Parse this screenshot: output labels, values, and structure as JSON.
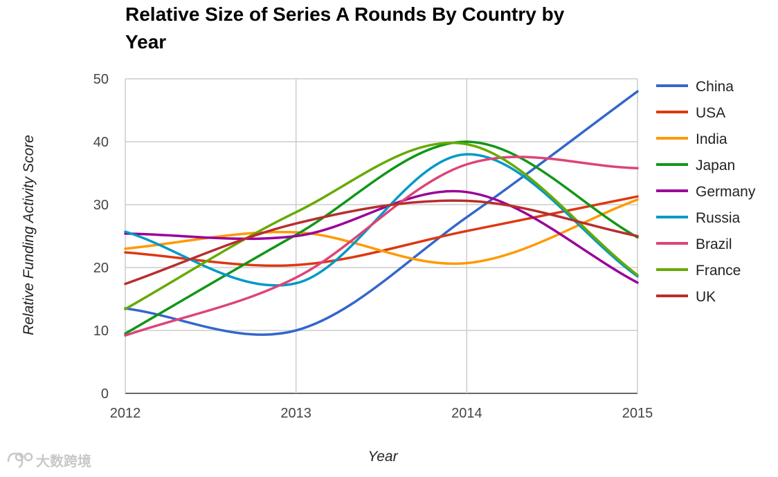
{
  "chart_data": {
    "type": "line",
    "title_lines": [
      "Relative Size of Series A Rounds By Country by",
      "Year"
    ],
    "xlabel": "Year",
    "ylabel": "Relative Funding Activity Score",
    "categories": [
      "2012",
      "2013",
      "2014",
      "2015"
    ],
    "ylim": [
      0,
      50
    ],
    "yticks": [
      "0",
      "10",
      "20",
      "30",
      "40",
      "50"
    ],
    "grid": true,
    "legend_position": "right",
    "curve": "smooth",
    "series": [
      {
        "name": "China",
        "color": "#3366cc",
        "values": [
          13.5,
          10.0,
          28.0,
          48.0
        ]
      },
      {
        "name": "USA",
        "color": "#dc3912",
        "values": [
          22.4,
          20.4,
          25.8,
          31.3
        ]
      },
      {
        "name": "India",
        "color": "#ff9900",
        "values": [
          23.0,
          25.6,
          20.7,
          30.8
        ]
      },
      {
        "name": "Japan",
        "color": "#109618",
        "values": [
          9.5,
          25.2,
          40.0,
          24.8
        ]
      },
      {
        "name": "Germany",
        "color": "#990099",
        "values": [
          25.4,
          25.0,
          32.0,
          17.6
        ]
      },
      {
        "name": "Russia",
        "color": "#0099c6",
        "values": [
          25.7,
          17.5,
          38.0,
          18.6
        ]
      },
      {
        "name": "Brazil",
        "color": "#dd4477",
        "values": [
          9.2,
          18.4,
          36.4,
          35.8
        ]
      },
      {
        "name": "France",
        "color": "#66aa00",
        "values": [
          13.4,
          28.8,
          39.6,
          18.8
        ]
      },
      {
        "name": "UK",
        "color": "#b82e2e",
        "values": [
          17.4,
          27.0,
          30.6,
          25.0
        ]
      }
    ]
  },
  "watermark": {
    "text": "大数跨境",
    "icon": "logo-icon"
  }
}
